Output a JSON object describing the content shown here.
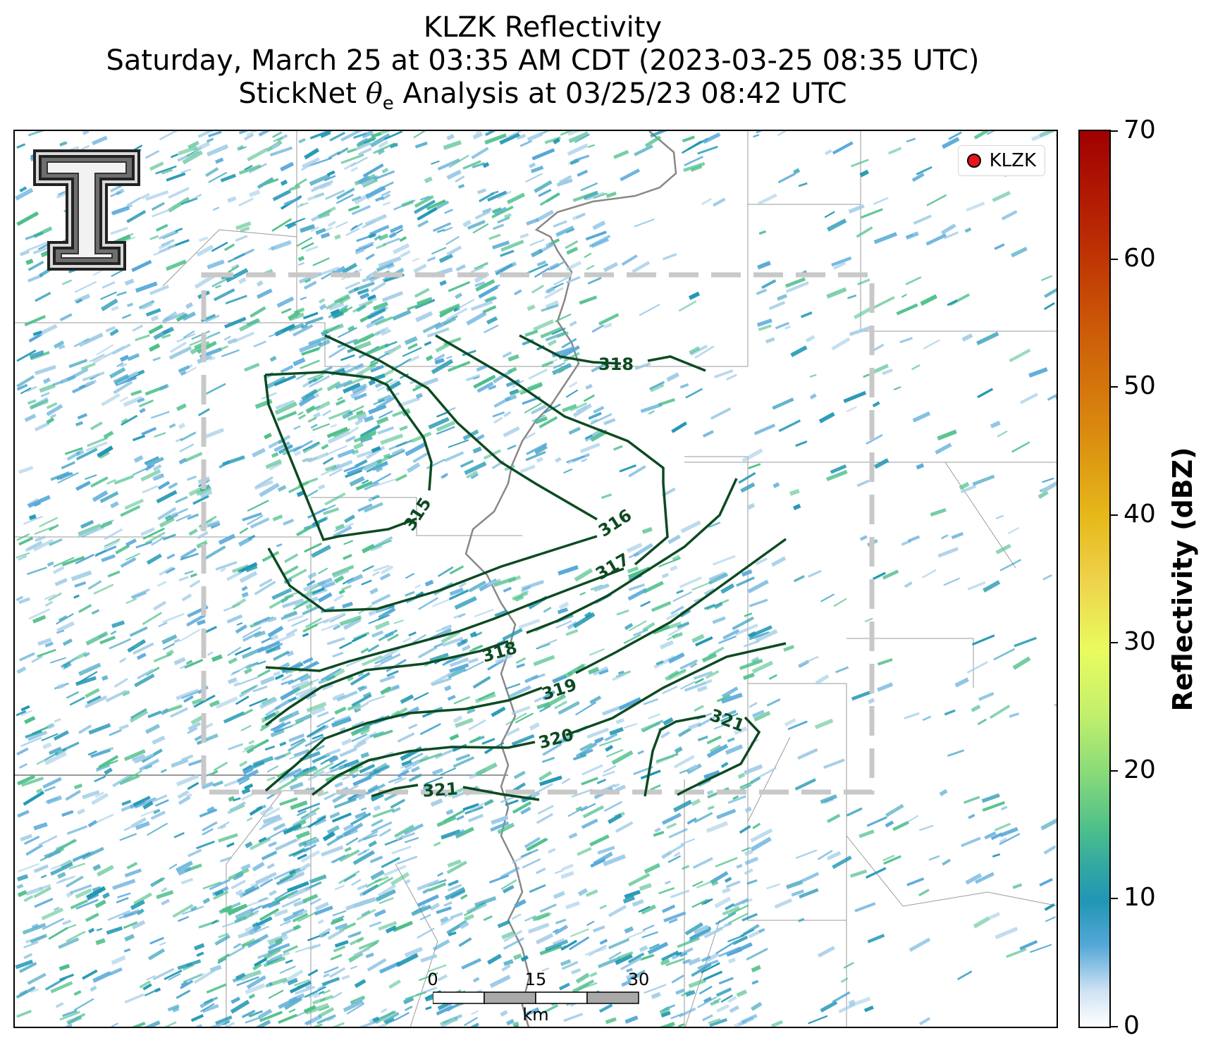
{
  "title": {
    "line1": "KLZK Reflectivity",
    "line2": "Saturday, March 25 at 03:35 AM CDT (2023-03-25 08:35 UTC)",
    "line3_prefix": "StickNet",
    "line3_symbol": "θ",
    "line3_subscript": "e",
    "line3_suffix": "Analysis at 03/25/23 08:42 UTC"
  },
  "legend": {
    "label": "KLZK",
    "marker_color": "#e8141b"
  },
  "colorbar": {
    "label": "Reflectivity (dBZ)",
    "ticks": [
      "0",
      "10",
      "20",
      "30",
      "40",
      "50",
      "60",
      "70"
    ],
    "min": 0,
    "max": 70
  },
  "scalebar": {
    "ticks": [
      "0",
      "15",
      "30"
    ],
    "unit": "km"
  },
  "contours": {
    "color": "#0d4a22",
    "labels": [
      "315",
      "316",
      "317",
      "318",
      "318",
      "319",
      "320",
      "321",
      "321"
    ]
  },
  "colors": {
    "reflectivity_low": "#56a8d8",
    "reflectivity_mid": "#2196b4",
    "reflectivity_high": "#4dbf8a",
    "analysis_box": "#c8c8c8",
    "river": "#888888",
    "boundaries": "#9a9a9a"
  },
  "logo": "texas-tech-double-t-logo"
}
